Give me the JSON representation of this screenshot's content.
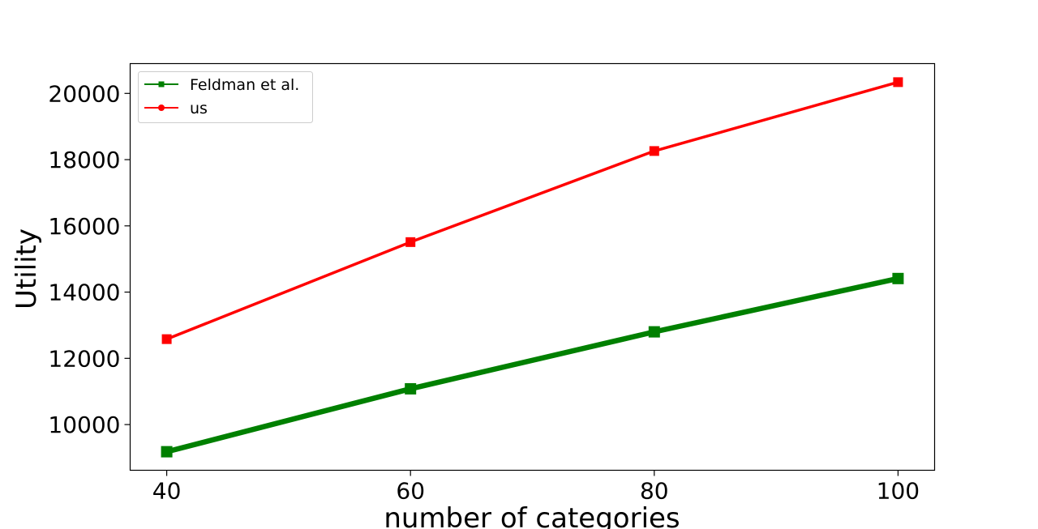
{
  "chart_data": {
    "type": "line",
    "title": "",
    "xlabel": "number of categories",
    "ylabel": "Utility",
    "x": [
      40,
      60,
      80,
      100
    ],
    "xticks": [
      40,
      60,
      80,
      100
    ],
    "yticks": [
      10000,
      12000,
      14000,
      16000,
      18000,
      20000
    ],
    "xlim": [
      37,
      103
    ],
    "ylim": [
      8620,
      20900
    ],
    "grid": false,
    "legend_position": "top-left",
    "series": [
      {
        "name": "Feldman et al.",
        "color": "#008000",
        "marker": "square",
        "values": [
          9180,
          11080,
          12800,
          14410
        ]
      },
      {
        "name": "us",
        "color": "#ff0000",
        "marker": "square",
        "legend_marker": "circle",
        "values": [
          12580,
          15510,
          18260,
          20340
        ]
      }
    ]
  }
}
